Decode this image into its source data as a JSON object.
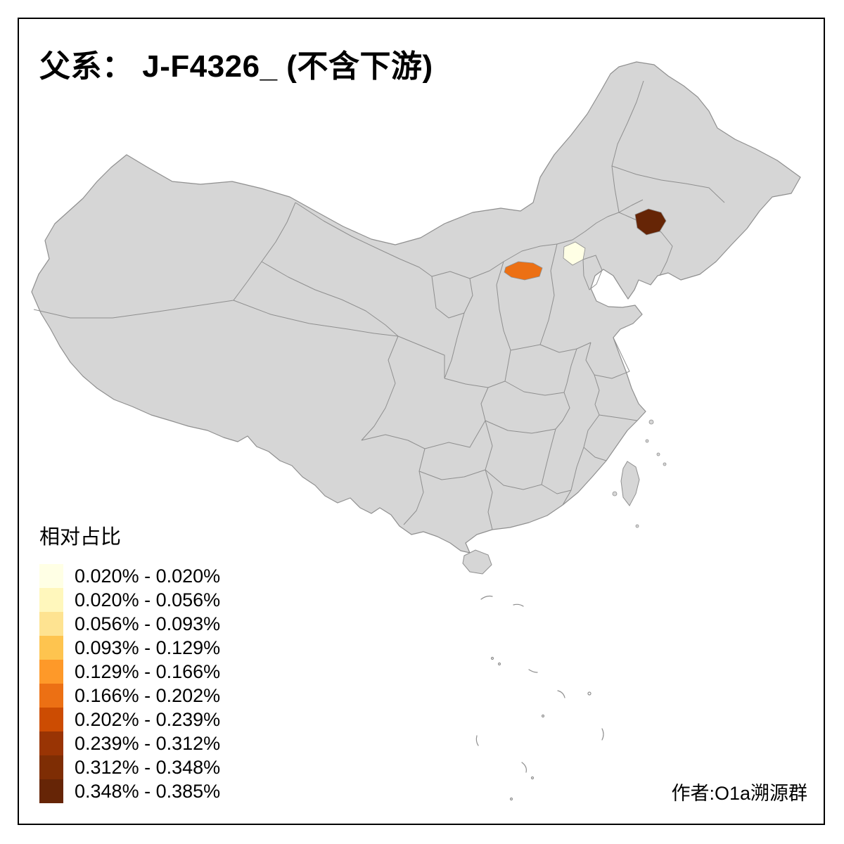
{
  "title": "父系： J-F4326_ (不含下游)",
  "credit": "作者:O1a溯源群",
  "legend": {
    "title": "相对占比",
    "items": [
      {
        "label": "0.020% - 0.020%",
        "color": "#FFFFE5"
      },
      {
        "label": "0.020% - 0.056%",
        "color": "#FFF7BC"
      },
      {
        "label": "0.056% - 0.093%",
        "color": "#FEE391"
      },
      {
        "label": "0.093% - 0.129%",
        "color": "#FEC44F"
      },
      {
        "label": "0.129% - 0.166%",
        "color": "#FE9929"
      },
      {
        "label": "0.166% - 0.202%",
        "color": "#EC7014"
      },
      {
        "label": "0.202% - 0.239%",
        "color": "#CC4C02"
      },
      {
        "label": "0.239% - 0.312%",
        "color": "#993404"
      },
      {
        "label": "0.312% - 0.348%",
        "color": "#7E2D04"
      },
      {
        "label": "0.348% - 0.385%",
        "color": "#662506"
      }
    ]
  },
  "map": {
    "base_fill": "#D6D6D6",
    "border_color": "#8F8F8F",
    "sea_color": "#FFFFFF",
    "highlights": [
      {
        "name": "region-northeast",
        "bin": "0.348% - 0.385%",
        "color": "#662506"
      },
      {
        "name": "region-north-shanxi",
        "bin": "0.166% - 0.202%",
        "color": "#EC7014"
      },
      {
        "name": "region-beijing",
        "bin": "0.020% - 0.020%",
        "color": "#FFFFE5"
      }
    ]
  }
}
